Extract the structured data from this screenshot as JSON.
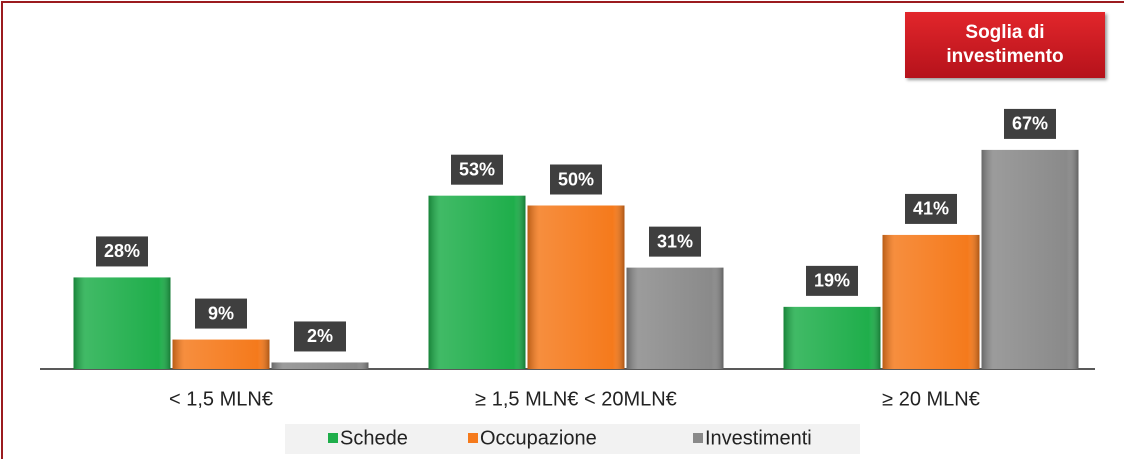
{
  "chart_data": {
    "type": "bar",
    "annotation": "Soglia di investimento",
    "categories": [
      "< 1,5 MLN€",
      "≥ 1,5 MLN€ < 20MLN€",
      "≥ 20 MLN€"
    ],
    "series": [
      {
        "name": "Schede",
        "color": "#1fae4b",
        "values": [
          28,
          53,
          19
        ],
        "value_labels": [
          "28%",
          "53%",
          "19%"
        ]
      },
      {
        "name": "Occupazione",
        "color": "#f57a1c",
        "values": [
          9,
          50,
          41
        ],
        "value_labels": [
          "9%",
          "50%",
          "41%"
        ]
      },
      {
        "name": "Investimenti",
        "color": "#8a8a8a",
        "values": [
          2,
          31,
          67
        ],
        "value_labels": [
          "2%",
          "31%",
          "67%"
        ]
      }
    ],
    "ylim": [
      0,
      100
    ]
  }
}
